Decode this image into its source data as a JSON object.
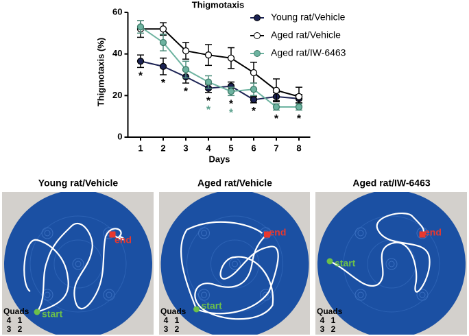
{
  "chart_data": {
    "type": "line",
    "title": "Thigmotaxis",
    "x_label": "Days",
    "y_label": "Thigmotaxis (%)",
    "categories": [
      "1",
      "2",
      "3",
      "4",
      "5",
      "6",
      "7",
      "8"
    ],
    "ylim": [
      0,
      60
    ],
    "yticks": [
      0,
      20,
      40,
      60
    ],
    "legend": "upper right",
    "series": [
      {
        "name": "Young rat/Vehicle",
        "color": "#1b2253",
        "line_color": "#1b2253",
        "values": [
          36.5,
          34,
          29,
          23.5,
          24.5,
          18,
          19.5,
          18.5
        ],
        "errors": [
          3,
          4,
          3,
          2,
          2,
          1.5,
          2,
          2
        ],
        "annotations": [
          "*",
          "*",
          "*",
          "*",
          "*",
          "*",
          "*",
          "*"
        ],
        "annotation_color": "#000000"
      },
      {
        "name": "Aged rat/Vehicle",
        "color": "#ffffff",
        "line_color": "#000000",
        "values": [
          52,
          52,
          41.5,
          39.5,
          38,
          31,
          22.5,
          19.5
        ],
        "errors": [
          4,
          3,
          4,
          5,
          5,
          5,
          5.5,
          4.5
        ]
      },
      {
        "name": "Aged rat/IW-6463",
        "color": "#6db3a0",
        "line_color": "#6db3a0",
        "values": [
          53,
          45.5,
          32.5,
          26.5,
          22,
          23,
          14.5,
          14.5
        ],
        "errors": [
          3,
          4,
          4,
          3,
          2,
          3,
          1.5,
          1.5
        ],
        "annotations": [
          null,
          null,
          null,
          "*",
          "*",
          null,
          null,
          null
        ],
        "annotation_color": "#5aa08c"
      }
    ]
  },
  "panels": [
    {
      "title": "Young rat/Vehicle",
      "start": "start",
      "end": "end",
      "quads_label": "Quads",
      "quads": [
        [
          4,
          1
        ],
        [
          3,
          2
        ]
      ]
    },
    {
      "title": "Aged rat/Vehicle",
      "start": "start",
      "end": "end",
      "quads_label": "Quads",
      "quads": [
        [
          4,
          1
        ],
        [
          3,
          2
        ]
      ]
    },
    {
      "title": "Aged rat/IW-6463",
      "start": "start",
      "end": "end",
      "quads_label": "Quads",
      "quads": [
        [
          4,
          1
        ],
        [
          3,
          2
        ]
      ]
    }
  ]
}
